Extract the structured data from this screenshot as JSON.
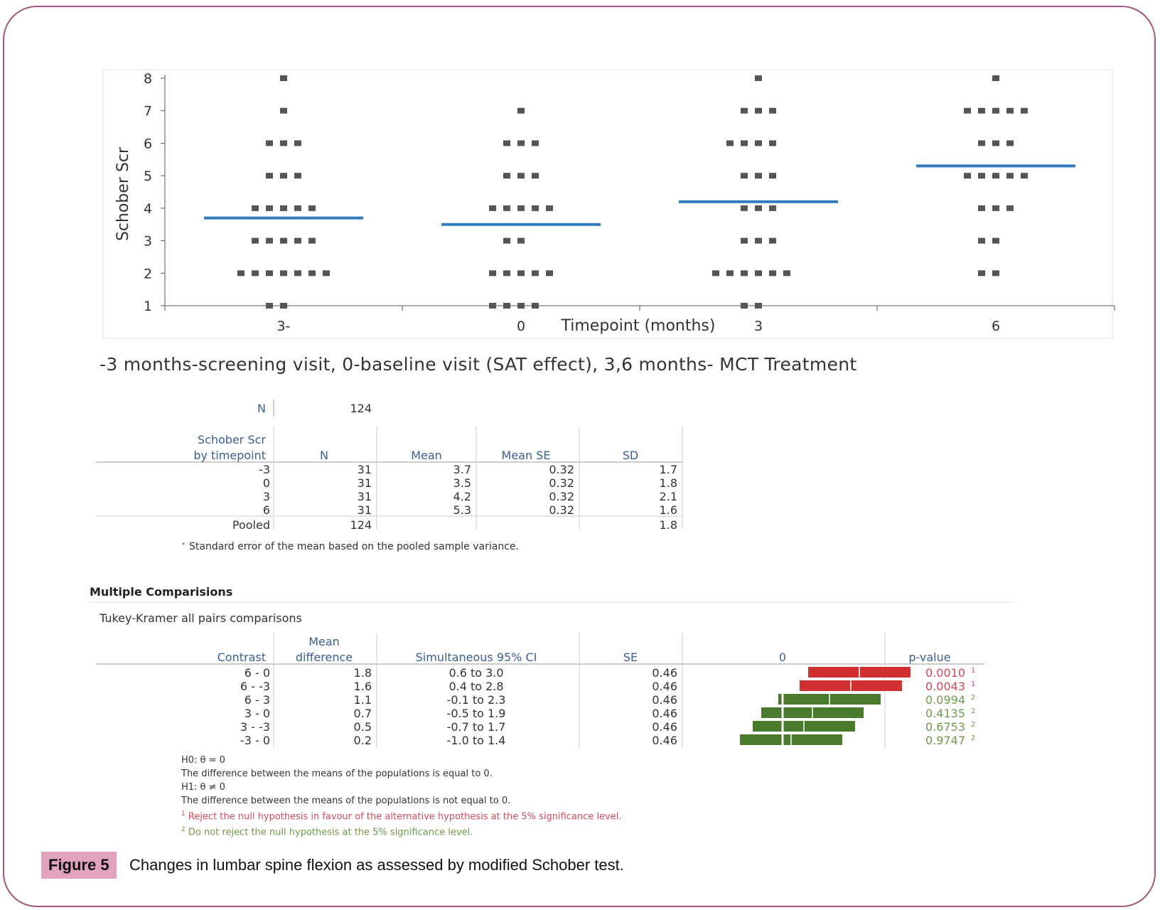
{
  "chart_data": [
    {
      "type": "scatter",
      "ylabel": "Schober Scr",
      "xlabel": "Timepoint (months)",
      "ylim": [
        1,
        8
      ],
      "yticks": [
        1,
        2,
        3,
        4,
        5,
        6,
        7,
        8
      ],
      "categories": [
        "3-",
        "0",
        "3",
        "6"
      ],
      "means": [
        3.7,
        3.5,
        4.2,
        5.3
      ],
      "mean_line_color": "#2e7bbf",
      "point_color": "#555555",
      "points": [
        [
          8,
          7,
          6,
          6,
          6,
          5,
          5,
          5,
          4,
          4,
          4,
          4,
          4,
          3,
          3,
          3,
          3,
          3,
          2,
          2,
          2,
          2,
          2,
          2,
          2,
          1,
          1
        ],
        [
          7,
          6,
          6,
          6,
          5,
          5,
          5,
          4,
          4,
          4,
          4,
          4,
          3,
          3,
          2,
          2,
          2,
          2,
          2,
          1,
          1,
          1,
          1
        ],
        [
          8,
          7,
          7,
          7,
          6,
          6,
          6,
          6,
          5,
          5,
          5,
          4,
          4,
          4,
          3,
          3,
          3,
          2,
          2,
          2,
          2,
          2,
          2,
          1,
          1
        ],
        [
          8,
          7,
          7,
          7,
          7,
          7,
          6,
          6,
          6,
          5,
          5,
          5,
          5,
          5,
          4,
          4,
          4,
          3,
          3,
          2,
          2
        ]
      ]
    },
    {
      "type": "table",
      "title": "Mean difference",
      "series_colors": {
        "reject": "#cf3030",
        "accept": "#4a7a2c"
      },
      "rows": [
        {
          "contrast": "6 - 0",
          "diff": 1.8,
          "lo": 0.6,
          "hi": 3.0,
          "reject": true
        },
        {
          "contrast": "6 - -3",
          "diff": 1.6,
          "lo": 0.4,
          "hi": 2.8,
          "reject": true
        },
        {
          "contrast": "6 - 3",
          "diff": 1.1,
          "lo": -0.1,
          "hi": 2.3,
          "reject": false
        },
        {
          "contrast": "3 - 0",
          "diff": 0.7,
          "lo": -0.5,
          "hi": 1.9,
          "reject": false
        },
        {
          "contrast": "3 - -3",
          "diff": 0.5,
          "lo": -0.7,
          "hi": 1.7,
          "reject": false
        },
        {
          "contrast": "-3 - 0",
          "diff": 0.2,
          "lo": -1.0,
          "hi": 1.4,
          "reject": false
        }
      ]
    }
  ],
  "subtitle": "-3 months-screening visit, 0-baseline visit (SAT effect), 3,6  months- MCT Treatment",
  "summary": {
    "n_label": "N",
    "n_value": "124",
    "header_line1": "Schober Scr",
    "header_line2": "by timepoint",
    "col_n": "N",
    "col_mean": "Mean",
    "col_mean_se": "Mean SE",
    "col_sd": "SD",
    "rows": [
      {
        "tp": "-3",
        "n": "31",
        "mean": "3.7",
        "se": "0.32",
        "sd": "1.7"
      },
      {
        "tp": "0",
        "n": "31",
        "mean": "3.5",
        "se": "0.32",
        "sd": "1.8"
      },
      {
        "tp": "3",
        "n": "31",
        "mean": "4.2",
        "se": "0.32",
        "sd": "2.1"
      },
      {
        "tp": "6",
        "n": "31",
        "mean": "5.3",
        "se": "0.32",
        "sd": "1.6"
      },
      {
        "tp": "Pooled",
        "n": "124",
        "mean": "",
        "se": "",
        "sd": "1.8"
      }
    ],
    "footnote": "Standard error of the mean based on the pooled sample variance."
  },
  "comparisons": {
    "heading": "Multiple Comparisions",
    "subheading": "Tukey-Kramer all pairs comparisons",
    "col_contrast": "Contrast",
    "col_diff_1": "Mean",
    "col_diff_2": "difference",
    "col_ci": "Simultaneous 95% CI",
    "col_se": "SE",
    "col_zero": "0",
    "col_p": "p-value",
    "rows": [
      {
        "contrast": "6 - 0",
        "diff": "1.8",
        "lo": "0.6",
        "hi": "3.0",
        "se": "0.46",
        "p": "0.0010",
        "note": "1"
      },
      {
        "contrast": "6 - -3",
        "diff": "1.6",
        "lo": "0.4",
        "hi": "2.8",
        "se": "0.46",
        "p": "0.0043",
        "note": "1"
      },
      {
        "contrast": "6 - 3",
        "diff": "1.1",
        "lo": "-0.1",
        "hi": "2.3",
        "se": "0.46",
        "p": "0.0994",
        "note": "2"
      },
      {
        "contrast": "3 - 0",
        "diff": "0.7",
        "lo": "-0.5",
        "hi": "1.9",
        "se": "0.46",
        "p": "0.4135",
        "note": "2"
      },
      {
        "contrast": "3 - -3",
        "diff": "0.5",
        "lo": "-0.7",
        "hi": "1.7",
        "se": "0.46",
        "p": "0.6753",
        "note": "2"
      },
      {
        "contrast": "-3 - 0",
        "diff": "0.2",
        "lo": "-1.0",
        "hi": "1.4",
        "se": "0.46",
        "p": "0.9747",
        "note": "2"
      }
    ],
    "ci_to": "to",
    "h0": "H0: θ = 0",
    "h0_text": "The difference between the means of the populations is equal to 0.",
    "h1": "H1: θ ≠ 0",
    "h1_text": "The difference between the means of the populations is not equal to 0.",
    "note1": "Reject the null hypothesis in favour of the alternative hypothesis at the 5% significance level.",
    "note2": "Do not reject the null hypothesis at the 5% significance level."
  },
  "caption": {
    "label": "Figure 5",
    "text": "Changes in lumbar spine flexion as assessed by modified Schober test."
  }
}
